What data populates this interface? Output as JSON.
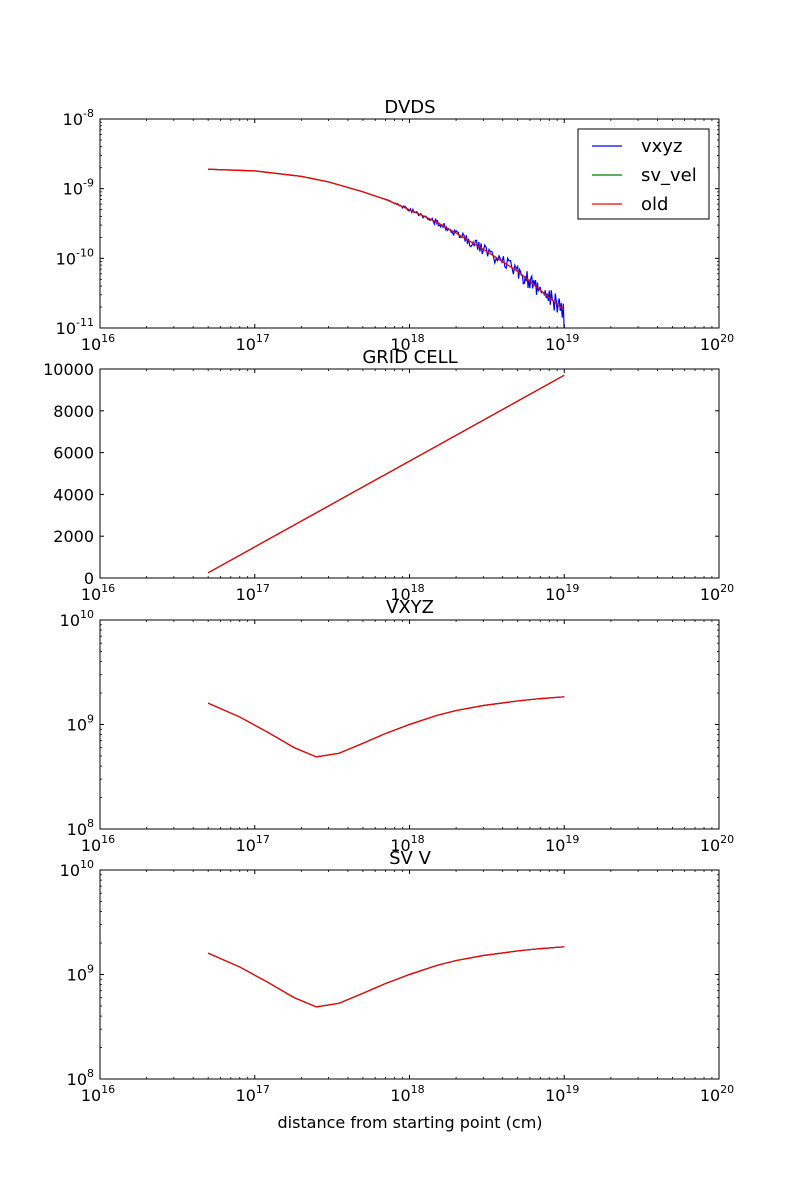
{
  "figure": {
    "xlabel": "distance from starting point (cm)"
  },
  "chart_data": [
    {
      "type": "line",
      "title": "DVDS",
      "xscale": "log",
      "yscale": "log",
      "xlim": [
        1e+16,
        1e+20
      ],
      "ylim": [
        1e-11,
        1e-08
      ],
      "x_ticks": [
        {
          "value": 1e+16,
          "base": "10",
          "exp": "16"
        },
        {
          "value": 1e+17,
          "base": "10",
          "exp": "17"
        },
        {
          "value": 1e+18,
          "base": "10",
          "exp": "18"
        },
        {
          "value": 1e+19,
          "base": "10",
          "exp": "19"
        },
        {
          "value": 1e+20,
          "base": "10",
          "exp": "20"
        }
      ],
      "y_ticks": [
        {
          "value": 1e-11,
          "base": "10",
          "exp": "-11"
        },
        {
          "value": 1e-10,
          "base": "10",
          "exp": "-10"
        },
        {
          "value": 1e-09,
          "base": "10",
          "exp": "-9"
        },
        {
          "value": 1e-08,
          "base": "10",
          "exp": "-8"
        }
      ],
      "grid": false,
      "legend": "top-right",
      "series": [
        {
          "name": "vxyz",
          "color": "#0000ff",
          "noisy": true,
          "x": [
            5e+16,
            1e+17,
            2e+17,
            3e+17,
            5e+17,
            7e+17,
            1e+18,
            1.5e+18,
            2e+18,
            3e+18,
            5e+18,
            7e+18,
            1e+19
          ],
          "y": [
            1.9e-09,
            1.8e-09,
            1.5e-09,
            1.25e-09,
            9e-10,
            7e-10,
            5e-10,
            3.3e-10,
            2.3e-10,
            1.35e-10,
            6.5e-11,
            3.5e-11,
            1.8e-11
          ]
        },
        {
          "name": "sv_vel",
          "color": "#008000",
          "x": [
            5e+16,
            1e+17,
            2e+17,
            3e+17,
            5e+17,
            7e+17,
            1e+18,
            1.5e+18,
            2e+18,
            3e+18,
            5e+18,
            7e+18,
            1e+19
          ],
          "y": [
            1.9e-09,
            1.8e-09,
            1.5e-09,
            1.25e-09,
            9e-10,
            7e-10,
            5e-10,
            3.3e-10,
            2.3e-10,
            1.35e-10,
            6.5e-11,
            3.5e-11,
            1.8e-11
          ]
        },
        {
          "name": "old",
          "color": "#ff0000",
          "x": [
            5e+16,
            1e+17,
            2e+17,
            3e+17,
            5e+17,
            7e+17,
            1e+18,
            1.5e+18,
            2e+18,
            3e+18,
            5e+18,
            7e+18,
            1e+19
          ],
          "y": [
            1.9e-09,
            1.8e-09,
            1.5e-09,
            1.25e-09,
            9e-10,
            7e-10,
            5e-10,
            3.3e-10,
            2.3e-10,
            1.35e-10,
            6.5e-11,
            3.5e-11,
            1.8e-11
          ]
        }
      ]
    },
    {
      "type": "line",
      "title": "GRID CELL",
      "xscale": "log",
      "yscale": "linear",
      "xlim": [
        1e+16,
        1e+20
      ],
      "ylim": [
        0,
        10000
      ],
      "x_ticks": [
        {
          "value": 1e+16,
          "base": "10",
          "exp": "16"
        },
        {
          "value": 1e+17,
          "base": "10",
          "exp": "17"
        },
        {
          "value": 1e+18,
          "base": "10",
          "exp": "18"
        },
        {
          "value": 1e+19,
          "base": "10",
          "exp": "19"
        },
        {
          "value": 1e+20,
          "base": "10",
          "exp": "20"
        }
      ],
      "y_ticks": [
        {
          "value": 0,
          "label": "0"
        },
        {
          "value": 2000,
          "label": "2000"
        },
        {
          "value": 4000,
          "label": "4000"
        },
        {
          "value": 6000,
          "label": "6000"
        },
        {
          "value": 8000,
          "label": "8000"
        },
        {
          "value": 10000,
          "label": "10000"
        }
      ],
      "grid": false,
      "series": [
        {
          "color": "#0000ff",
          "x": [
            5e+16,
            1e+19
          ],
          "y": [
            250,
            9700
          ]
        },
        {
          "color": "#008000",
          "x": [
            5e+16,
            1e+19
          ],
          "y": [
            250,
            9700
          ]
        },
        {
          "color": "#ff0000",
          "x": [
            5e+16,
            1e+19
          ],
          "y": [
            250,
            9700
          ]
        }
      ]
    },
    {
      "type": "line",
      "title": "VXYZ",
      "xscale": "log",
      "yscale": "log",
      "xlim": [
        1e+16,
        1e+20
      ],
      "ylim": [
        100000000.0,
        10000000000.0
      ],
      "x_ticks": [
        {
          "value": 1e+16,
          "base": "10",
          "exp": "16"
        },
        {
          "value": 1e+17,
          "base": "10",
          "exp": "17"
        },
        {
          "value": 1e+18,
          "base": "10",
          "exp": "18"
        },
        {
          "value": 1e+19,
          "base": "10",
          "exp": "19"
        },
        {
          "value": 1e+20,
          "base": "10",
          "exp": "20"
        }
      ],
      "y_ticks": [
        {
          "value": 100000000.0,
          "base": "10",
          "exp": "8"
        },
        {
          "value": 1000000000.0,
          "base": "10",
          "exp": "9"
        },
        {
          "value": 10000000000.0,
          "base": "10",
          "exp": "10"
        }
      ],
      "grid": false,
      "series": [
        {
          "color": "#0000ff",
          "x": [
            5e+16,
            8e+16,
            1.2e+17,
            1.8e+17,
            2.5e+17,
            3.5e+17,
            5e+17,
            7e+17,
            1e+18,
            1.5e+18,
            2e+18,
            3e+18,
            5e+18,
            7e+18,
            1e+19
          ],
          "y": [
            1600000000.0,
            1180000000.0,
            850000000.0,
            600000000.0,
            490000000.0,
            530000000.0,
            660000000.0,
            820000000.0,
            1000000000.0,
            1220000000.0,
            1360000000.0,
            1520000000.0,
            1680000000.0,
            1770000000.0,
            1840000000.0
          ]
        },
        {
          "color": "#008000",
          "x": [
            5e+16,
            8e+16,
            1.2e+17,
            1.8e+17,
            2.5e+17,
            3.5e+17,
            5e+17,
            7e+17,
            1e+18,
            1.5e+18,
            2e+18,
            3e+18,
            5e+18,
            7e+18,
            1e+19
          ],
          "y": [
            1600000000.0,
            1180000000.0,
            850000000.0,
            600000000.0,
            490000000.0,
            530000000.0,
            660000000.0,
            820000000.0,
            1000000000.0,
            1220000000.0,
            1360000000.0,
            1520000000.0,
            1680000000.0,
            1770000000.0,
            1840000000.0
          ]
        },
        {
          "color": "#ff0000",
          "x": [
            5e+16,
            8e+16,
            1.2e+17,
            1.8e+17,
            2.5e+17,
            3.5e+17,
            5e+17,
            7e+17,
            1e+18,
            1.5e+18,
            2e+18,
            3e+18,
            5e+18,
            7e+18,
            1e+19
          ],
          "y": [
            1600000000.0,
            1180000000.0,
            850000000.0,
            600000000.0,
            490000000.0,
            530000000.0,
            660000000.0,
            820000000.0,
            1000000000.0,
            1220000000.0,
            1360000000.0,
            1520000000.0,
            1680000000.0,
            1770000000.0,
            1840000000.0
          ]
        }
      ]
    },
    {
      "type": "line",
      "title": "SV V",
      "xscale": "log",
      "yscale": "log",
      "xlim": [
        1e+16,
        1e+20
      ],
      "ylim": [
        100000000.0,
        10000000000.0
      ],
      "x_ticks": [
        {
          "value": 1e+16,
          "base": "10",
          "exp": "16"
        },
        {
          "value": 1e+17,
          "base": "10",
          "exp": "17"
        },
        {
          "value": 1e+18,
          "base": "10",
          "exp": "18"
        },
        {
          "value": 1e+19,
          "base": "10",
          "exp": "19"
        },
        {
          "value": 1e+20,
          "base": "10",
          "exp": "20"
        }
      ],
      "y_ticks": [
        {
          "value": 100000000.0,
          "base": "10",
          "exp": "8"
        },
        {
          "value": 1000000000.0,
          "base": "10",
          "exp": "9"
        },
        {
          "value": 10000000000.0,
          "base": "10",
          "exp": "10"
        }
      ],
      "grid": false,
      "series": [
        {
          "color": "#0000ff",
          "x": [
            5e+16,
            8e+16,
            1.2e+17,
            1.8e+17,
            2.5e+17,
            3.5e+17,
            5e+17,
            7e+17,
            1e+18,
            1.5e+18,
            2e+18,
            3e+18,
            5e+18,
            7e+18,
            1e+19
          ],
          "y": [
            1600000000.0,
            1180000000.0,
            850000000.0,
            600000000.0,
            490000000.0,
            530000000.0,
            660000000.0,
            820000000.0,
            1000000000.0,
            1220000000.0,
            1360000000.0,
            1520000000.0,
            1680000000.0,
            1770000000.0,
            1840000000.0
          ]
        },
        {
          "color": "#008000",
          "x": [
            5e+16,
            8e+16,
            1.2e+17,
            1.8e+17,
            2.5e+17,
            3.5e+17,
            5e+17,
            7e+17,
            1e+18,
            1.5e+18,
            2e+18,
            3e+18,
            5e+18,
            7e+18,
            1e+19
          ],
          "y": [
            1600000000.0,
            1180000000.0,
            850000000.0,
            600000000.0,
            490000000.0,
            530000000.0,
            660000000.0,
            820000000.0,
            1000000000.0,
            1220000000.0,
            1360000000.0,
            1520000000.0,
            1680000000.0,
            1770000000.0,
            1840000000.0
          ]
        },
        {
          "color": "#ff0000",
          "x": [
            5e+16,
            8e+16,
            1.2e+17,
            1.8e+17,
            2.5e+17,
            3.5e+17,
            5e+17,
            7e+17,
            1e+18,
            1.5e+18,
            2e+18,
            3e+18,
            5e+18,
            7e+18,
            1e+19
          ],
          "y": [
            1600000000.0,
            1180000000.0,
            850000000.0,
            600000000.0,
            490000000.0,
            530000000.0,
            660000000.0,
            820000000.0,
            1000000000.0,
            1220000000.0,
            1360000000.0,
            1520000000.0,
            1680000000.0,
            1770000000.0,
            1840000000.0
          ]
        }
      ]
    }
  ]
}
